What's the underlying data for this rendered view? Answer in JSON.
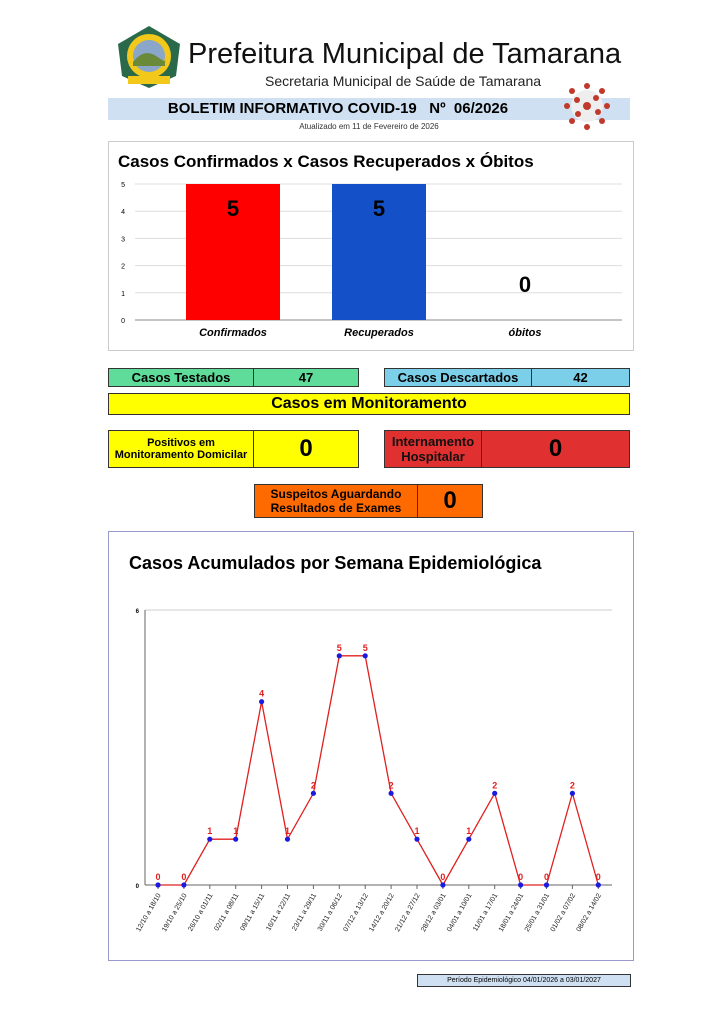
{
  "header": {
    "title": "Prefeitura Municipal de Tamarana",
    "subtitle": "Secretaria Municipal de Saúde de Tamarana",
    "bulletin": "BOLETIM INFORMATIVO COVID-19   Nº  06/2026",
    "updated": "Atualizado em 11 de Fevereiro de 2026",
    "logo_text": "Tamarana"
  },
  "stats": {
    "tested_label": "Casos Testados",
    "tested": "47",
    "discarded_label": "Casos Descartados",
    "discarded": "42",
    "monitoring_title": "Casos em Monitoramento",
    "home_label": "Positivos em Monitoramento Domicilar",
    "home": "0",
    "hospital_label": "Internamento Hospitalar",
    "hospital": "0",
    "pending_label": "Suspeitos Aguardando Resultados de Exames",
    "pending": "0"
  },
  "colors": {
    "confirmed": "#ff0000",
    "recovered": "#1450c8",
    "tested": "#5fdb9a",
    "discarded": "#7ccfe8",
    "yellow": "#ffff00",
    "hospital": "#e03030",
    "pending": "#ff6a00"
  },
  "footer": {
    "period": "Período Epidemiológico 04/01/2026 a 03/01/2027"
  },
  "chart_data": [
    {
      "type": "bar",
      "title": "Casos Confirmados x Casos Recuperados x Óbitos",
      "categories": [
        "Confirmados",
        "Recuperados",
        "óbitos"
      ],
      "values": [
        5,
        5,
        0
      ],
      "ylim": [
        0,
        5
      ],
      "yticks": [
        "0",
        "1",
        "2",
        "3",
        "4",
        "5"
      ],
      "grid": true
    },
    {
      "type": "line",
      "title": "Casos Acumulados por Semana Epidemiológica",
      "categories": [
        "12/10 a 18/10",
        "19/10 a 25/10",
        "26/10 a 01/11",
        "02/11 a 08/11",
        "09/11 a 15/11",
        "16/11 a 22/11",
        "23/11 a 29/11",
        "30/11 a 06/12",
        "07/12 a 13/12",
        "14/12 a 20/12",
        "21/12 a 27/12",
        "28/12 a 03/01",
        "04/01 a 10/01",
        "11/01 a 17/01",
        "18/01 a 24/01",
        "25/01 a 31/01",
        "01/02 a 07/02",
        "08/02 a 14/02"
      ],
      "values": [
        0,
        0,
        1,
        1,
        4,
        1,
        2,
        5,
        5,
        2,
        1,
        0,
        1,
        2,
        0,
        0,
        2,
        0
      ],
      "ylim": [
        0,
        6
      ],
      "yticks": [
        "0",
        "6"
      ]
    }
  ]
}
